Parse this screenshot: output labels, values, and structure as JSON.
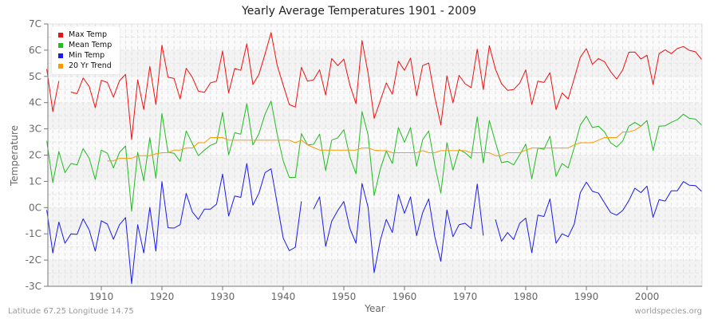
{
  "title": "Yearly Average Temperatures 1901 - 2009",
  "footer": {
    "left": "Latitude 67.25 Longitude 14.75",
    "right": "worldspecies.org"
  },
  "legend": [
    {
      "label": "Max Temp",
      "color": "#ee1111"
    },
    {
      "label": "Mean Temp",
      "color": "#22bb22"
    },
    {
      "label": "Min Temp",
      "color": "#1a1aee"
    },
    {
      "label": "20 Yr Trend",
      "color": "#ff9900"
    }
  ],
  "chart_data": {
    "type": "line",
    "title": "Yearly Average Temperatures 1901 - 2009",
    "xlabel": "Year",
    "ylabel": "Temperature",
    "xlim": [
      1901,
      2009
    ],
    "ylim": [
      -3,
      7
    ],
    "x_ticks": [
      1910,
      1920,
      1930,
      1940,
      1950,
      1960,
      1970,
      1980,
      1990,
      2000
    ],
    "y_ticks": [
      "-3C",
      "-2C",
      "-1C",
      "0C",
      "1C",
      "2C",
      "3C",
      "4C",
      "5C",
      "6C",
      "7C"
    ],
    "grid": true,
    "legend_position": "top-left",
    "x_start": 1901,
    "series": [
      {
        "name": "Max Temp",
        "color": "#ee1111",
        "start": 1901,
        "values": [
          5.28,
          3.66,
          4.82,
          null,
          4.4,
          4.34,
          4.94,
          4.62,
          3.81,
          4.85,
          4.77,
          4.21,
          4.84,
          5.08,
          2.59,
          4.87,
          3.74,
          5.38,
          3.93,
          6.19,
          4.97,
          4.92,
          4.14,
          5.31,
          4.97,
          4.44,
          4.39,
          4.75,
          4.82,
          5.97,
          4.37,
          5.3,
          5.23,
          6.24,
          4.69,
          5.08,
          5.85,
          6.67,
          5.43,
          4.67,
          3.93,
          3.83,
          5.35,
          4.82,
          4.87,
          5.25,
          4.29,
          5.68,
          5.41,
          5.66,
          4.67,
          3.96,
          6.37,
          5.12,
          3.4,
          4.06,
          4.75,
          4.32,
          5.58,
          5.23,
          5.7,
          4.26,
          5.41,
          5.51,
          4.21,
          3.15,
          5.02,
          3.99,
          5.04,
          4.72,
          4.57,
          6.04,
          4.5,
          6.17,
          5.28,
          4.72,
          4.47,
          4.5,
          4.74,
          5.25,
          3.93,
          4.82,
          4.77,
          5.14,
          3.74,
          4.37,
          4.14,
          4.92,
          5.73,
          6.06,
          5.46,
          5.68,
          5.56,
          5.18,
          4.9,
          5.25,
          5.92,
          5.93,
          5.66,
          5.81,
          4.69,
          5.87,
          6.01,
          5.87,
          6.06,
          6.14,
          5.99,
          5.94,
          5.65
        ]
      },
      {
        "name": "Mean Temp",
        "color": "#22bb22",
        "start": 1901,
        "values": [
          2.54,
          0.95,
          2.14,
          1.33,
          1.68,
          1.63,
          2.25,
          1.88,
          1.07,
          2.19,
          2.07,
          1.51,
          2.11,
          2.35,
          -0.14,
          2.11,
          1.02,
          2.67,
          1.12,
          3.59,
          2.11,
          2.07,
          1.76,
          2.92,
          2.44,
          1.98,
          2.19,
          2.37,
          2.47,
          3.63,
          2.01,
          2.85,
          2.8,
          3.96,
          2.39,
          2.82,
          3.56,
          4.06,
          2.8,
          1.78,
          1.15,
          1.15,
          2.82,
          2.39,
          2.41,
          2.8,
          1.41,
          2.57,
          2.66,
          2.97,
          1.93,
          1.29,
          3.66,
          2.77,
          0.46,
          1.46,
          2.16,
          1.68,
          3.05,
          2.49,
          3.05,
          1.58,
          2.59,
          2.92,
          1.63,
          0.55,
          2.47,
          1.43,
          2.21,
          2.09,
          1.88,
          3.46,
          1.7,
          3.32,
          2.49,
          1.71,
          1.76,
          1.63,
          2.01,
          2.42,
          1.09,
          2.27,
          2.22,
          2.72,
          1.19,
          1.68,
          1.51,
          2.29,
          3.15,
          3.48,
          3.05,
          3.1,
          2.88,
          2.47,
          2.31,
          2.54,
          3.1,
          3.25,
          3.1,
          3.32,
          2.17,
          3.1,
          3.12,
          3.25,
          3.35,
          3.56,
          3.4,
          3.37,
          3.15
        ]
      },
      {
        "name": "Min Temp",
        "color": "#1a1aee",
        "start": 1901,
        "values": [
          -0.09,
          -1.73,
          -0.55,
          -1.36,
          -1.0,
          -1.02,
          -0.43,
          -0.85,
          -1.66,
          -0.5,
          -0.63,
          -1.21,
          -0.65,
          -0.38,
          -2.9,
          -0.65,
          -1.73,
          0.01,
          -1.66,
          0.99,
          -0.77,
          -0.78,
          -0.65,
          0.54,
          -0.16,
          -0.45,
          -0.06,
          -0.06,
          0.13,
          1.28,
          -0.32,
          0.44,
          0.39,
          1.68,
          0.09,
          0.55,
          1.33,
          1.48,
          0.16,
          -1.16,
          -1.64,
          -1.51,
          0.24,
          null,
          -0.06,
          0.41,
          -1.48,
          -0.52,
          -0.11,
          0.23,
          -0.8,
          -1.36,
          0.92,
          0.01,
          -2.48,
          -1.26,
          -0.45,
          -0.95,
          0.5,
          -0.22,
          0.41,
          -1.07,
          -0.19,
          0.33,
          -1.11,
          -2.05,
          -0.09,
          -1.11,
          -0.65,
          -0.6,
          -0.8,
          0.9,
          -1.07,
          null,
          -0.45,
          -1.28,
          -0.95,
          -1.22,
          -0.6,
          -0.4,
          -1.72,
          -0.29,
          -0.34,
          0.33,
          -1.36,
          -1.0,
          -1.11,
          -0.63,
          0.57,
          0.97,
          0.62,
          0.55,
          0.18,
          -0.19,
          -0.29,
          -0.11,
          0.26,
          0.74,
          0.57,
          0.82,
          -0.37,
          0.3,
          0.25,
          0.64,
          0.64,
          0.99,
          0.85,
          0.84,
          0.62
        ]
      },
      {
        "name": "20 Yr Trend",
        "color": "#ff9900",
        "start": 1911,
        "values": [
          1.78,
          1.78,
          1.88,
          1.88,
          1.88,
          1.98,
          1.98,
          1.98,
          2.05,
          2.09,
          2.09,
          2.19,
          2.19,
          2.27,
          2.27,
          2.47,
          2.47,
          2.67,
          2.67,
          2.67,
          2.57,
          2.57,
          2.57,
          2.57,
          2.57,
          2.57,
          2.57,
          2.57,
          2.57,
          2.57,
          2.57,
          2.47,
          2.57,
          2.39,
          2.29,
          2.19,
          2.19,
          2.19,
          2.19,
          2.19,
          2.19,
          2.19,
          2.27,
          2.27,
          2.19,
          2.17,
          2.17,
          2.09,
          2.09,
          2.09,
          2.09,
          2.09,
          2.17,
          2.09,
          2.09,
          2.17,
          2.17,
          2.17,
          2.17,
          2.17,
          2.09,
          2.09,
          2.09,
          2.09,
          1.98,
          1.98,
          2.09,
          2.09,
          2.09,
          2.19,
          2.27,
          2.27,
          2.27,
          2.27,
          2.27,
          2.27,
          2.27,
          2.39,
          2.47,
          2.47,
          2.47,
          2.57,
          2.67,
          2.67,
          2.67,
          2.88,
          2.88,
          2.95,
          3.1
        ]
      }
    ]
  }
}
